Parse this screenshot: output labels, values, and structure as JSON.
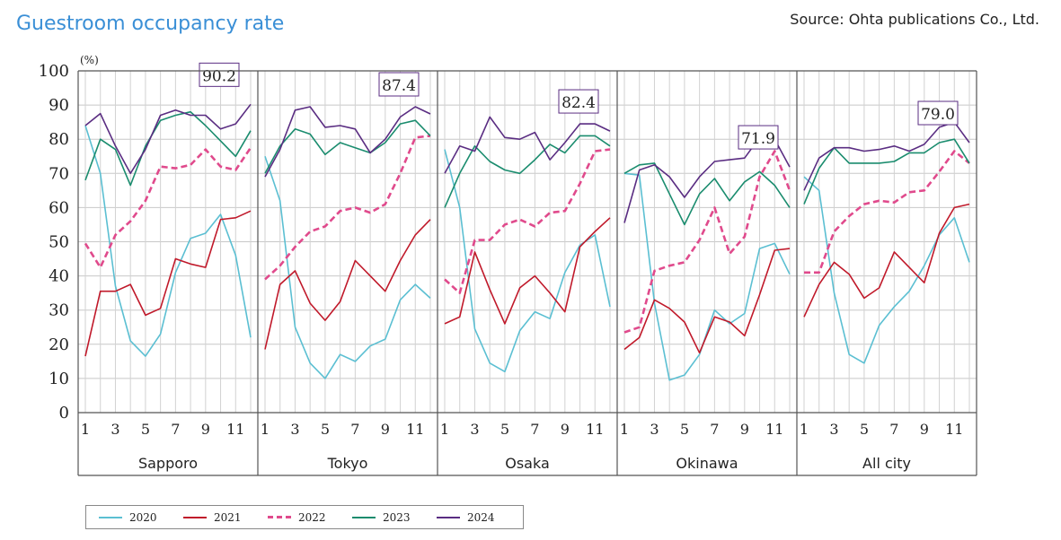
{
  "title": "Guestroom occupancy rate",
  "source": "Source: Ohta publications Co., Ltd.",
  "chart_data": {
    "type": "line",
    "y_unit": "(%)",
    "ylim": [
      0,
      100
    ],
    "y_ticks": [
      0,
      10,
      20,
      30,
      40,
      50,
      60,
      70,
      80,
      90,
      100
    ],
    "x_tick_labels": [
      "1",
      "3",
      "5",
      "7",
      "9",
      "11"
    ],
    "x": [
      1,
      2,
      3,
      4,
      5,
      6,
      7,
      8,
      9,
      10,
      11,
      12
    ],
    "grid": true,
    "legend_position": "bottom",
    "series_styles": [
      {
        "name": "2020",
        "color": "#5bbfd2",
        "dash": "solid"
      },
      {
        "name": "2021",
        "color": "#c0192a",
        "dash": "solid"
      },
      {
        "name": "2022",
        "color": "#e04a8c",
        "dash": "dashed"
      },
      {
        "name": "2023",
        "color": "#1a8c6e",
        "dash": "solid"
      },
      {
        "name": "2024",
        "color": "#5a2d82",
        "dash": "solid"
      }
    ],
    "panels": [
      {
        "label": "Sapporo",
        "annotation": "90.2",
        "series": [
          {
            "name": "2020",
            "values": [
              84,
              70,
              37,
              21,
              16.5,
              23,
              41,
              51,
              52.5,
              58,
              46,
              22
            ]
          },
          {
            "name": "2021",
            "values": [
              16.5,
              35.5,
              35.5,
              37.5,
              28.5,
              30.5,
              45,
              43.5,
              42.5,
              56.5,
              57,
              59
            ]
          },
          {
            "name": "2022",
            "values": [
              49.5,
              42.5,
              52,
              56,
              62,
              72,
              71.5,
              72.5,
              77,
              72,
              71,
              77.5
            ]
          },
          {
            "name": "2023",
            "values": [
              68,
              80,
              77,
              66.5,
              78,
              85.5,
              87,
              88,
              84,
              79.5,
              75,
              82.5
            ]
          },
          {
            "name": "2024",
            "values": [
              84,
              87.5,
              78,
              70,
              77,
              87,
              88.5,
              87,
              87,
              83,
              84.5,
              90.2
            ]
          }
        ]
      },
      {
        "label": "Tokyo",
        "annotation": "87.4",
        "series": [
          {
            "name": "2020",
            "values": [
              75,
              62,
              25,
              14.5,
              10,
              17,
              15,
              19.5,
              21.5,
              33,
              37.5,
              33.5
            ]
          },
          {
            "name": "2021",
            "values": [
              18.5,
              37.5,
              41.5,
              32,
              27,
              32.5,
              44.5,
              40,
              35.5,
              44.5,
              52,
              56.5
            ]
          },
          {
            "name": "2022",
            "values": [
              39,
              43,
              48.5,
              53,
              54.5,
              59,
              60,
              58.5,
              61,
              70,
              80.5,
              81
            ]
          },
          {
            "name": "2023",
            "values": [
              70,
              78,
              83,
              81.5,
              75.5,
              79,
              77.5,
              76,
              79,
              84.5,
              85.5,
              81
            ]
          },
          {
            "name": "2024",
            "values": [
              69,
              77,
              88.5,
              89.5,
              83.5,
              84,
              83,
              76,
              80,
              86.5,
              89.5,
              87.4
            ]
          }
        ]
      },
      {
        "label": "Osaka",
        "annotation": "82.4",
        "series": [
          {
            "name": "2020",
            "values": [
              77,
              60,
              24.5,
              14.5,
              12,
              24,
              29.5,
              27.5,
              41,
              49,
              52,
              31
            ]
          },
          {
            "name": "2021",
            "values": [
              26,
              28,
              47,
              36,
              26,
              36.5,
              40,
              35,
              29.5,
              48.5,
              53,
              57
            ]
          },
          {
            "name": "2022",
            "values": [
              39,
              35,
              50.5,
              50.5,
              55,
              56.5,
              54.5,
              58.5,
              59,
              67,
              76.5,
              77
            ]
          },
          {
            "name": "2023",
            "values": [
              60,
              70,
              78,
              73.5,
              71,
              70,
              74,
              78.5,
              76,
              81,
              81,
              78
            ]
          },
          {
            "name": "2024",
            "values": [
              70,
              78,
              76.5,
              86.5,
              80.5,
              80,
              82,
              74,
              79,
              84.5,
              84.5,
              82.4
            ]
          }
        ]
      },
      {
        "label": "Okinawa",
        "annotation": "71.9",
        "series": [
          {
            "name": "2020",
            "values": [
              70,
              69.5,
              32,
              9.5,
              11,
              17,
              30,
              26,
              29,
              48,
              49.5,
              40.5
            ]
          },
          {
            "name": "2021",
            "values": [
              18.5,
              22,
              33,
              30.5,
              26.5,
              17.5,
              28,
              26.5,
              22.5,
              34.5,
              47.5,
              48
            ]
          },
          {
            "name": "2022",
            "values": [
              23.5,
              25,
              41.5,
              43,
              44,
              50.5,
              60,
              46.5,
              51.5,
              69,
              76.5,
              65
            ]
          },
          {
            "name": "2023",
            "values": [
              70,
              72.5,
              73,
              64,
              55,
              64,
              68.5,
              62,
              67.5,
              70.5,
              66.5,
              60
            ]
          },
          {
            "name": "2024",
            "values": [
              55.5,
              71,
              72.5,
              69,
              63,
              69,
              73.5,
              74,
              74.5,
              80.5,
              80,
              71.9
            ]
          }
        ]
      },
      {
        "label": "All city",
        "annotation": "79.0",
        "series": [
          {
            "name": "2020",
            "values": [
              69,
              65,
              35,
              17,
              14.5,
              25.5,
              31,
              35.5,
              43,
              52,
              57,
              44
            ]
          },
          {
            "name": "2021",
            "values": [
              28,
              37.5,
              44,
              40.5,
              33.5,
              36.5,
              47,
              42.5,
              38,
              52.5,
              60,
              61
            ]
          },
          {
            "name": "2022",
            "values": [
              41,
              41,
              53,
              57.5,
              61,
              62,
              61.5,
              64.5,
              65,
              70.5,
              76.5,
              73
            ]
          },
          {
            "name": "2023",
            "values": [
              61,
              71.5,
              77.5,
              73,
              73,
              73,
              73.5,
              76,
              76,
              79,
              80,
              73
            ]
          },
          {
            "name": "2024",
            "values": [
              65,
              74.5,
              77.5,
              77.5,
              76.5,
              77,
              78,
              76.5,
              78.5,
              83.5,
              85,
              79.0
            ]
          }
        ]
      }
    ]
  }
}
